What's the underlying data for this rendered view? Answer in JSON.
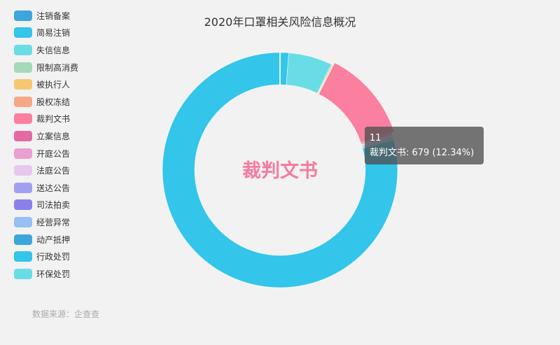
{
  "chart_data": {
    "type": "pie",
    "title": "2020年口罩相关风险信息概况",
    "series": [
      {
        "name": "注销备案",
        "value": 5,
        "color": "#3ca7dd"
      },
      {
        "name": "简易注销",
        "value": 60,
        "color": "#33c5ea"
      },
      {
        "name": "失信信息",
        "value": 330,
        "color": "#69dde5"
      },
      {
        "name": "限制高消费",
        "value": 8,
        "color": "#a6d9b8"
      },
      {
        "name": "被执行人",
        "value": 6,
        "color": "#f5c771"
      },
      {
        "name": "股权冻结",
        "value": 4,
        "color": "#f5a788"
      },
      {
        "name": "裁判文书",
        "value": 679,
        "percent": "12.34%",
        "color": "#fb7f9f"
      },
      {
        "name": "立案信息",
        "value": 10,
        "color": "#e46aa6"
      },
      {
        "name": "开庭公告",
        "value": 12,
        "color": "#e9a0d1"
      },
      {
        "name": "法庭公告",
        "value": 6,
        "color": "#e6c8ee"
      },
      {
        "name": "送达公告",
        "value": 8,
        "color": "#a39ff0"
      },
      {
        "name": "司法拍卖",
        "value": 5,
        "color": "#8a80e8"
      },
      {
        "name": "经营异常",
        "value": 12,
        "color": "#95bff5"
      },
      {
        "name": "动产抵押",
        "value": 3,
        "color": "#3ca7dd"
      },
      {
        "name": "行政处罚",
        "value": 4350,
        "color": "#33c5ea"
      },
      {
        "name": "环保处罚",
        "value": 4,
        "color": "#69dde5"
      }
    ],
    "legend_position": "left",
    "center_label": "裁判文书",
    "tooltip": {
      "index": "11",
      "text": "裁判文书: 679 (12.34%)"
    }
  },
  "source": "数据来源：企查查"
}
